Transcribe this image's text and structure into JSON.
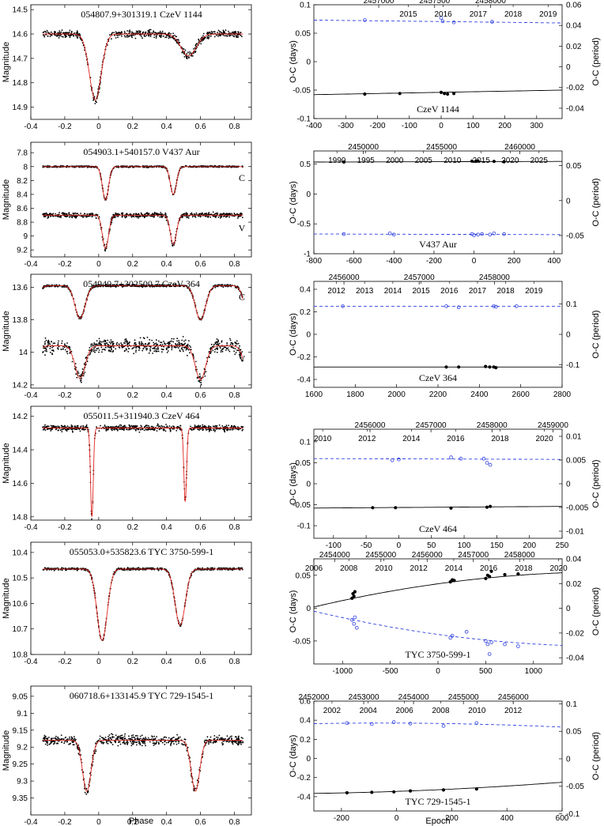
{
  "figure": {
    "xlabel_left": "Phase",
    "xlabel_right": "Epoch"
  },
  "chart_data": [
    {
      "type": "scatter",
      "name": "light-curve-1",
      "title": "054807.9+301319.1    CzeV 1144",
      "ylabel": "Magnitude",
      "xlim": [
        -0.4,
        0.9
      ],
      "ylim": [
        14.95,
        14.48
      ],
      "yticks": [
        14.5,
        14.6,
        14.7,
        14.8,
        14.9
      ],
      "xticks": [
        -0.4,
        -0.2,
        0,
        0.2,
        0.4,
        0.6,
        0.8
      ],
      "show_xlabel": false,
      "bands": [
        {
          "label": "",
          "base": 14.6,
          "scatter": 0.012,
          "eclipses": [
            [
              -0.02,
              0.27,
              0.035
            ],
            [
              0.53,
              0.09,
              0.045
            ]
          ]
        }
      ]
    },
    {
      "type": "scatter",
      "name": "light-curve-2",
      "title": "054903.1+540157.0    V437 Aur",
      "ylabel": "Magnitude",
      "xlim": [
        -0.4,
        0.9
      ],
      "ylim": [
        9.3,
        7.65
      ],
      "yticks": [
        7.8,
        8,
        8.2,
        8.4,
        8.6,
        8.8,
        9,
        9.2
      ],
      "xticks": [
        -0.4,
        -0.2,
        0,
        0.2,
        0.4,
        0.6,
        0.8
      ],
      "show_xlabel": false,
      "bands": [
        {
          "label": "C",
          "base": 8.0,
          "scatter": 0.01,
          "eclipses": [
            [
              0.04,
              0.48,
              0.018
            ],
            [
              0.44,
              0.4,
              0.018
            ]
          ]
        },
        {
          "label": "V",
          "base": 8.7,
          "scatter": 0.03,
          "eclipses": [
            [
              0.04,
              0.48,
              0.018
            ],
            [
              0.44,
              0.42,
              0.018
            ]
          ]
        }
      ]
    },
    {
      "type": "scatter",
      "name": "light-curve-3",
      "title": "054940.7+302500.7    CzeV 364",
      "ylabel": "Magnitude",
      "xlim": [
        -0.4,
        0.9
      ],
      "ylim": [
        14.22,
        13.52
      ],
      "yticks": [
        13.6,
        13.8,
        14,
        14.2
      ],
      "xticks": [
        -0.4,
        -0.2,
        0,
        0.2,
        0.4,
        0.6,
        0.8
      ],
      "show_xlabel": false,
      "bands": [
        {
          "label": "C",
          "base": 13.59,
          "scatter": 0.006,
          "eclipses": [
            [
              -0.11,
              0.2,
              0.03
            ],
            [
              0.6,
              0.21,
              0.03
            ]
          ]
        },
        {
          "label": "V",
          "base": 13.96,
          "scatter": 0.035,
          "eclipses": [
            [
              -0.11,
              0.2,
              0.03
            ],
            [
              0.6,
              0.21,
              0.03
            ]
          ]
        }
      ]
    },
    {
      "type": "scatter",
      "name": "light-curve-4",
      "title": "055011.5+311940.3    CzeV 464",
      "ylabel": "Magnitude",
      "xlim": [
        -0.4,
        0.9
      ],
      "ylim": [
        14.82,
        14.14
      ],
      "yticks": [
        14.2,
        14.4,
        14.6,
        14.8
      ],
      "xticks": [
        -0.4,
        -0.2,
        0,
        0.2,
        0.4,
        0.6,
        0.8
      ],
      "show_xlabel": false,
      "bands": [
        {
          "label": "",
          "base": 14.27,
          "scatter": 0.015,
          "eclipses": [
            [
              -0.04,
              0.53,
              0.008
            ],
            [
              0.51,
              0.44,
              0.008
            ]
          ]
        }
      ]
    },
    {
      "type": "scatter",
      "name": "light-curve-5",
      "title": "055053.0+535823.6    TYC 3750-599-1",
      "ylabel": "Magnitude",
      "xlim": [
        -0.4,
        0.9
      ],
      "ylim": [
        10.8,
        10.36
      ],
      "yticks": [
        10.4,
        10.5,
        10.6,
        10.7,
        10.8
      ],
      "xticks": [
        -0.4,
        -0.2,
        0,
        0.2,
        0.4,
        0.6,
        0.8
      ],
      "show_xlabel": false,
      "bands": [
        {
          "label": "",
          "base": 10.465,
          "scatter": 0.004,
          "eclipses": [
            [
              0.02,
              0.28,
              0.03
            ],
            [
              0.48,
              0.22,
              0.03
            ]
          ]
        }
      ]
    },
    {
      "type": "scatter",
      "name": "light-curve-6",
      "title": "060718.6+133145.9    TYC 729-1545-1",
      "ylabel": "Magnitude",
      "xlim": [
        -0.4,
        0.9
      ],
      "ylim": [
        9.4,
        9.02
      ],
      "yticks": [
        9.05,
        9.1,
        9.15,
        9.2,
        9.25,
        9.3,
        9.35
      ],
      "xticks": [
        -0.4,
        -0.2,
        0,
        0.2,
        0.4,
        0.6,
        0.8
      ],
      "show_xlabel": true,
      "bands": [
        {
          "label": "",
          "base": 9.18,
          "scatter": 0.012,
          "eclipses": [
            [
              -0.07,
              0.15,
              0.025
            ],
            [
              0.57,
              0.15,
              0.025
            ]
          ]
        }
      ]
    },
    {
      "type": "line",
      "name": "oc-1",
      "label": "CzeV 1144",
      "ylabel": "O-C (days)",
      "y2label": "O-C (period)",
      "xlim": [
        -400,
        380
      ],
      "xticks": [
        -400,
        -300,
        -200,
        -100,
        0,
        100,
        200,
        300
      ],
      "ylim": [
        -0.1,
        0.1
      ],
      "yticks": [
        -0.1,
        -0.05,
        0,
        0.05,
        0.1
      ],
      "y2lim": [
        -0.05,
        0.06
      ],
      "y2ticks": [
        -0.04,
        -0.02,
        0,
        0.02,
        0.04,
        0.06
      ],
      "show_xlabel": false,
      "top1": {
        "lim": [
          2456420,
          2458640
        ],
        "ticks": [
          2457000,
          2457500,
          2458000
        ]
      },
      "top2": {
        "lim": [
          2012.3,
          2019.4
        ],
        "ticks": [
          2015,
          2016,
          2017,
          2018,
          2019
        ]
      },
      "primary": {
        "line": [
          [
            -400,
            -0.058
          ],
          [
            380,
            -0.05
          ]
        ],
        "x": [
          -240,
          -130,
          0,
          10,
          20,
          40
        ],
        "y": [
          -0.057,
          -0.056,
          -0.054,
          -0.056,
          -0.057,
          -0.056
        ]
      },
      "secondary": {
        "line": [
          [
            -400,
            0.073
          ],
          [
            380,
            0.068
          ]
        ],
        "x": [
          -240,
          0,
          5,
          40,
          160
        ],
        "y": [
          0.073,
          0.077,
          0.071,
          0.069,
          0.07
        ]
      }
    },
    {
      "type": "line",
      "name": "oc-2",
      "label": "V437 Aur",
      "ylabel": "O-C (days)",
      "y2label": "O-C (period)",
      "xlim": [
        -800,
        440
      ],
      "xticks": [
        -800,
        -600,
        -400,
        -200,
        0,
        200,
        400
      ],
      "ylim": [
        -1.0,
        0.72
      ],
      "yticks": [
        -1,
        -0.5,
        0,
        0.5
      ],
      "y2lim": [
        -0.076,
        0.071
      ],
      "y2ticks": [
        -0.05,
        0,
        0.05
      ],
      "show_xlabel": false,
      "top1": {
        "lim": [
          2446840,
          2462700
        ],
        "ticks": [
          2450000,
          2455000,
          2460000
        ]
      },
      "top2": {
        "lim": [
          1986,
          2029
        ],
        "ticks": [
          1990,
          1995,
          2000,
          2005,
          2010,
          2015,
          2020,
          2025
        ]
      },
      "primary": {
        "line": [
          [
            -800,
            0.535
          ],
          [
            440,
            0.545
          ]
        ],
        "x": [
          -650,
          -10,
          10,
          20,
          100,
          150
        ],
        "y": [
          0.535,
          0.55,
          0.548,
          0.552,
          0.545,
          0.54
        ]
      },
      "secondary": {
        "line": [
          [
            -800,
            -0.67
          ],
          [
            440,
            -0.68
          ]
        ],
        "x": [
          -650,
          -420,
          -400,
          -10,
          0,
          20,
          40,
          80,
          100,
          150
        ],
        "y": [
          -0.67,
          -0.66,
          -0.68,
          -0.67,
          -0.69,
          -0.68,
          -0.67,
          -0.68,
          -0.66,
          -0.67
        ]
      }
    },
    {
      "type": "line",
      "name": "oc-3",
      "label": "CzeV 364",
      "ylabel": "O-C (days)",
      "y2label": "O-C (period)",
      "xlim": [
        1600,
        2800
      ],
      "xticks": [
        1600,
        1800,
        2000,
        2200,
        2400,
        2600,
        2800
      ],
      "ylim": [
        -0.47,
        0.47
      ],
      "yticks": [
        -0.4,
        -0.2,
        0,
        0.2,
        0.4
      ],
      "y2lim": [
        -0.175,
        0.175
      ],
      "y2ticks": [
        -0.1,
        0,
        0.1
      ],
      "show_xlabel": false,
      "top1": {
        "lim": [
          2455600,
          2458900
        ],
        "ticks": [
          2456000,
          2457000,
          2458000
        ]
      },
      "top2": {
        "lim": [
          2011.2,
          2020.0
        ],
        "ticks": [
          2012,
          2013,
          2014,
          2015,
          2016,
          2017,
          2018,
          2019
        ]
      },
      "primary": {
        "line": [
          [
            1600,
            -0.29
          ],
          [
            2800,
            -0.29
          ]
        ],
        "x": [
          2240,
          2300,
          2430,
          2450,
          2470,
          2480
        ],
        "y": [
          -0.29,
          -0.29,
          -0.285,
          -0.29,
          -0.29,
          -0.295
        ]
      },
      "secondary": {
        "line": [
          [
            1600,
            0.25
          ],
          [
            2800,
            0.25
          ]
        ],
        "x": [
          1740,
          2240,
          2300,
          2470,
          2480,
          2580
        ],
        "y": [
          0.25,
          0.25,
          0.24,
          0.25,
          0.245,
          0.25
        ]
      }
    },
    {
      "type": "line",
      "name": "oc-4",
      "label": "CzeV 464",
      "ylabel": "O-C (days)",
      "y2label": "O-C (period)",
      "xlim": [
        -130,
        250
      ],
      "xticks": [
        -100,
        -50,
        0,
        50,
        100,
        150,
        200,
        250
      ],
      "ylim": [
        -0.13,
        0.13
      ],
      "yticks": [
        -0.1,
        -0.05,
        0,
        0.05,
        0.1
      ],
      "y2lim": [
        -0.0115,
        0.0115
      ],
      "y2ticks": [
        -0.01,
        -0.005,
        0,
        0.005,
        0.01
      ],
      "show_xlabel": false,
      "top1": {
        "lim": [
          2455080,
          2459150
        ],
        "ticks": [
          2456000,
          2457000,
          2458000,
          2459000
        ]
      },
      "top2": {
        "lim": [
          2009.6,
          2020.8
        ],
        "ticks": [
          2010,
          2012,
          2014,
          2016,
          2018,
          2020
        ]
      },
      "primary": {
        "line": [
          [
            -130,
            -0.058
          ],
          [
            250,
            -0.054
          ]
        ],
        "x": [
          -40,
          -5,
          80,
          135,
          140
        ],
        "y": [
          -0.057,
          -0.057,
          -0.058,
          -0.056,
          -0.054
        ]
      },
      "secondary": {
        "line": [
          [
            -130,
            0.06
          ],
          [
            250,
            0.058
          ]
        ],
        "x": [
          -10,
          0,
          80,
          95,
          130,
          135,
          140
        ],
        "y": [
          0.056,
          0.058,
          0.063,
          0.06,
          0.06,
          0.05,
          0.045
        ]
      }
    },
    {
      "type": "line",
      "name": "oc-5",
      "label": "TYC 3750-599-1",
      "ylabel": "O-C (days)",
      "y2label": "O-C (period)",
      "xlim": [
        -1300,
        1300
      ],
      "xticks": [
        -1000,
        -500,
        0,
        500,
        1000
      ],
      "ylim": [
        -0.085,
        0.075
      ],
      "yticks": [
        -0.05,
        0,
        0.05
      ],
      "y2lim": [
        -0.045,
        0.04
      ],
      "y2ticks": [
        -0.04,
        -0.02,
        0,
        0.02,
        0.04
      ],
      "show_xlabel": false,
      "top1": {
        "lim": [
          2453550,
          2458920
        ],
        "ticks": [
          2454000,
          2455000,
          2456000,
          2457000,
          2458000
        ]
      },
      "top2": {
        "lim": [
          2006,
          2020.2
        ],
        "ticks": [
          2006,
          2008,
          2010,
          2012,
          2014,
          2016,
          2018,
          2020
        ]
      },
      "primary": {
        "line": "quad",
        "a": 0.037,
        "b": 2e-05,
        "c": -5.5e-09,
        "x": [
          -900,
          -890,
          -880,
          -870,
          130,
          150,
          170,
          500,
          520,
          540,
          560,
          700,
          840
        ],
        "y": [
          0.015,
          0.022,
          0.018,
          0.025,
          0.04,
          0.043,
          0.042,
          0.045,
          0.05,
          0.048,
          0.056,
          0.051,
          0.052
        ]
      },
      "secondary": {
        "line": "quad",
        "a": -0.04,
        "b": -2e-05,
        "c": 5.5e-09,
        "x": [
          -900,
          -880,
          -870,
          -850,
          130,
          150,
          300,
          500,
          520,
          540,
          560,
          700,
          840
        ],
        "y": [
          -0.018,
          -0.024,
          -0.014,
          -0.03,
          -0.045,
          -0.042,
          -0.036,
          -0.05,
          -0.055,
          -0.07,
          -0.052,
          -0.055,
          -0.058
        ]
      }
    },
    {
      "type": "line",
      "name": "oc-6",
      "label": "TYC 729-1545-1",
      "ylabel": "O-C (days)",
      "y2label": "O-C (period)",
      "xlim": [
        -300,
        600
      ],
      "xticks": [
        -200,
        0,
        200,
        400,
        600
      ],
      "ylim": [
        -0.55,
        0.6
      ],
      "yticks": [
        -0.4,
        -0.2,
        0,
        0.2,
        0.4,
        0.6
      ],
      "y2lim": [
        -0.095,
        0.105
      ],
      "y2ticks": [
        -0.1,
        -0.05,
        0,
        0.05,
        0.1
      ],
      "show_xlabel": true,
      "top1": {
        "lim": [
          2452000,
          2456980
        ],
        "ticks": [
          2452000,
          2453000,
          2454000,
          2455000,
          2456000
        ]
      },
      "top2": {
        "lim": [
          2001,
          2014.7
        ],
        "ticks": [
          2002,
          2004,
          2006,
          2008,
          2010,
          2012
        ]
      },
      "primary": {
        "line": "quad",
        "a": -0.345,
        "b": 0.0001,
        "c": 1e-07,
        "x": [
          -180,
          -90,
          -10,
          50,
          170,
          290
        ],
        "y": [
          -0.36,
          -0.355,
          -0.35,
          -0.34,
          -0.33,
          -0.32
        ]
      },
      "secondary": {
        "line": "quad",
        "a": 0.37,
        "b": -1e-05,
        "c": -1e-07,
        "x": [
          -180,
          -90,
          -10,
          50,
          170,
          290
        ],
        "y": [
          0.37,
          0.36,
          0.38,
          0.365,
          0.34,
          0.37
        ]
      }
    }
  ]
}
